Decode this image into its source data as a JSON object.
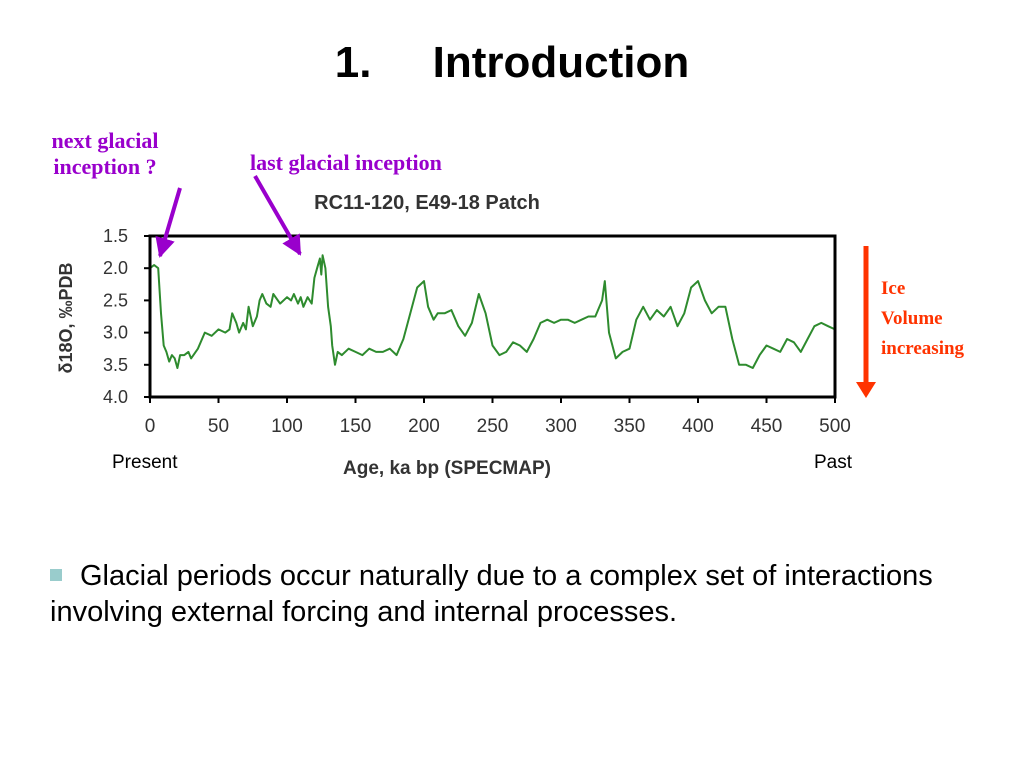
{
  "slide": {
    "title": "1.     Introduction",
    "bullet_text": "Glacial periods occur naturally due to a complex set of interactions involving external forcing and internal processes.",
    "bullet_color": "#99cccc"
  },
  "annotations": {
    "next_glacial": [
      "next glacial",
      "inception ?"
    ],
    "last_glacial": "last glacial inception",
    "ice_volume": [
      "Ice",
      "Volume",
      "increasing"
    ],
    "present": "Present",
    "past": "Past",
    "purple_color": "#9900cc",
    "red_color": "#ff3300"
  },
  "chart_data": {
    "type": "line",
    "title": "RC11-120, E49-18 Patch",
    "xlabel": "Age, ka bp (SPECMAP)",
    "ylabel": "δ18O, ‰PDB",
    "xlim": [
      0,
      500
    ],
    "ylim": [
      4.0,
      1.5
    ],
    "y_inverted": true,
    "xticks": [
      0,
      50,
      100,
      150,
      200,
      250,
      300,
      350,
      400,
      450,
      500
    ],
    "yticks": [
      1.5,
      2.0,
      2.5,
      3.0,
      3.5,
      4.0
    ],
    "ytick_labels": [
      "1.5",
      "2.0",
      "2.5",
      "3.0",
      "3.5",
      "4.0"
    ],
    "grid": false,
    "series": [
      {
        "color": "#2e8b2e",
        "x": [
          0,
          3,
          6,
          8,
          10,
          12,
          14,
          16,
          18,
          20,
          22,
          25,
          28,
          30,
          35,
          40,
          45,
          50,
          55,
          58,
          60,
          63,
          65,
          68,
          70,
          72,
          75,
          78,
          80,
          82,
          85,
          88,
          90,
          95,
          100,
          103,
          105,
          108,
          110,
          112,
          115,
          118,
          120,
          122,
          124,
          125,
          126,
          128,
          130,
          132,
          133,
          135,
          137,
          140,
          145,
          150,
          155,
          160,
          165,
          170,
          175,
          180,
          185,
          190,
          195,
          200,
          203,
          207,
          210,
          215,
          220,
          225,
          230,
          235,
          240,
          245,
          250,
          255,
          260,
          265,
          270,
          275,
          280,
          285,
          290,
          295,
          300,
          305,
          310,
          315,
          320,
          325,
          330,
          332,
          335,
          340,
          345,
          350,
          355,
          360,
          365,
          370,
          375,
          380,
          385,
          390,
          395,
          400,
          405,
          410,
          415,
          420,
          425,
          430,
          435,
          440,
          445,
          450,
          455,
          460,
          465,
          470,
          475,
          480,
          485,
          490,
          495,
          500
        ],
        "values": [
          2.0,
          1.95,
          2.0,
          2.7,
          3.2,
          3.3,
          3.45,
          3.35,
          3.4,
          3.55,
          3.35,
          3.35,
          3.3,
          3.4,
          3.25,
          3.0,
          3.05,
          2.95,
          3.0,
          2.95,
          2.7,
          2.85,
          3.0,
          2.85,
          2.95,
          2.6,
          2.9,
          2.75,
          2.5,
          2.4,
          2.55,
          2.6,
          2.4,
          2.55,
          2.45,
          2.5,
          2.4,
          2.55,
          2.45,
          2.6,
          2.45,
          2.55,
          2.15,
          2.0,
          1.85,
          2.1,
          1.8,
          2.0,
          2.6,
          2.9,
          3.2,
          3.5,
          3.3,
          3.35,
          3.25,
          3.3,
          3.35,
          3.25,
          3.3,
          3.3,
          3.25,
          3.35,
          3.1,
          2.7,
          2.3,
          2.2,
          2.6,
          2.8,
          2.7,
          2.7,
          2.65,
          2.9,
          3.05,
          2.85,
          2.4,
          2.7,
          3.2,
          3.35,
          3.3,
          3.15,
          3.2,
          3.3,
          3.1,
          2.85,
          2.8,
          2.85,
          2.8,
          2.8,
          2.85,
          2.8,
          2.75,
          2.75,
          2.5,
          2.2,
          3.0,
          3.4,
          3.3,
          3.25,
          2.8,
          2.6,
          2.8,
          2.65,
          2.75,
          2.6,
          2.9,
          2.7,
          2.3,
          2.2,
          2.5,
          2.7,
          2.6,
          2.6,
          3.1,
          3.5,
          3.5,
          3.55,
          3.35,
          3.2,
          3.25,
          3.3,
          3.1,
          3.15,
          3.3,
          3.1,
          2.9,
          2.85,
          2.9,
          2.95
        ]
      }
    ]
  }
}
